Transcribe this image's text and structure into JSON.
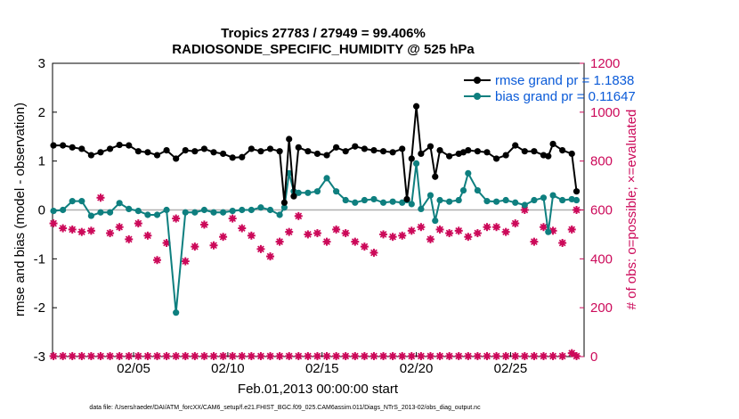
{
  "chart_data": {
    "type": "line",
    "title": "Tropics 27783 / 27949 = 99.406%",
    "subtitle": "RADIOSONDE_SPECIFIC_HUMIDITY @ 525 hPa",
    "xlabel": "Feb.01,2013 00:00:00 start",
    "ylabel": "rmse and bias (model - observation)",
    "y2label": "# of obs: o=possible; ×=evaluated",
    "footnote": "data file: /Users/raeder/DAI/ATM_forcXX/CAM6_setup/f.e21.FHIST_BGC.f09_025.CAM6assim.011/Diags_NTrS_2013-02/obs_diag_output.nc",
    "xlim": [
      0.7,
      28.9
    ],
    "ylim": [
      -3,
      3
    ],
    "y2lim": [
      0,
      1200
    ],
    "xticks": [
      5,
      10,
      15,
      20,
      25
    ],
    "xtick_labels": [
      "02/05",
      "02/10",
      "02/15",
      "02/20",
      "02/25"
    ],
    "yticks": [
      -3,
      -2,
      -1,
      0,
      1,
      2,
      3
    ],
    "ytick_labels": [
      "-3",
      "-2",
      "-1",
      "0",
      "1",
      "2",
      "3"
    ],
    "y2ticks": [
      0,
      200,
      400,
      600,
      800,
      1000,
      1200
    ],
    "y2tick_labels": [
      "0",
      "200",
      "400",
      "600",
      "800",
      "1000",
      "1200"
    ],
    "legend": [
      "rmse grand pr = 1.1838",
      "bias grand pr = 0.11647"
    ],
    "colors": {
      "rmse": "#000000",
      "bias": "#0e7f7f",
      "obs": "#cc0a5a",
      "zero": "#b0b0b0",
      "legend_text": "#0b5bd8"
    },
    "series": [
      {
        "name": "rmse",
        "x": [
          0.75,
          1.25,
          1.75,
          2.25,
          2.75,
          3.25,
          3.75,
          4.25,
          4.75,
          5.25,
          5.75,
          6.25,
          6.75,
          7.25,
          7.75,
          8.25,
          8.75,
          9.25,
          9.75,
          10.25,
          10.75,
          11.25,
          11.75,
          12.25,
          12.75,
          13.0,
          13.25,
          13.5,
          13.75,
          14.25,
          14.75,
          15.25,
          15.75,
          16.25,
          16.75,
          17.25,
          17.75,
          18.25,
          18.75,
          19.25,
          19.5,
          19.75,
          20.0,
          20.25,
          20.75,
          21.0,
          21.25,
          21.75,
          22.25,
          22.5,
          22.75,
          23.25,
          23.75,
          24.25,
          24.75,
          25.25,
          25.75,
          26.25,
          26.75,
          27.0,
          27.25,
          27.75,
          28.25,
          28.5
        ],
        "y": [
          1.32,
          1.32,
          1.28,
          1.25,
          1.12,
          1.18,
          1.25,
          1.33,
          1.32,
          1.2,
          1.18,
          1.12,
          1.22,
          1.05,
          1.22,
          1.2,
          1.25,
          1.18,
          1.15,
          1.07,
          1.08,
          1.25,
          1.2,
          1.25,
          1.2,
          0.15,
          1.45,
          0.28,
          1.28,
          1.2,
          1.15,
          1.12,
          1.28,
          1.2,
          1.3,
          1.25,
          1.22,
          1.2,
          1.18,
          1.25,
          0.22,
          1.05,
          2.12,
          1.15,
          1.3,
          0.68,
          1.22,
          1.1,
          1.15,
          1.18,
          1.22,
          1.2,
          1.18,
          1.05,
          1.12,
          1.32,
          1.2,
          1.2,
          1.12,
          1.1,
          1.35,
          1.22,
          1.15,
          0.38
        ]
      },
      {
        "name": "bias",
        "x": [
          0.75,
          1.25,
          1.75,
          2.25,
          2.75,
          3.25,
          3.75,
          4.25,
          4.75,
          5.25,
          5.75,
          6.25,
          6.75,
          7.25,
          7.75,
          8.25,
          8.75,
          9.25,
          9.75,
          10.25,
          10.75,
          11.25,
          11.75,
          12.25,
          12.75,
          13.0,
          13.25,
          13.5,
          13.75,
          14.25,
          14.75,
          15.25,
          15.75,
          16.25,
          16.75,
          17.25,
          17.75,
          18.25,
          18.75,
          19.25,
          19.5,
          19.75,
          20.0,
          20.25,
          20.75,
          21.0,
          21.25,
          21.75,
          22.25,
          22.5,
          22.75,
          23.25,
          23.75,
          24.25,
          24.75,
          25.25,
          25.75,
          26.25,
          26.75,
          27.0,
          27.25,
          27.75,
          28.25,
          28.5
        ],
        "y": [
          -0.02,
          0.0,
          0.18,
          0.18,
          -0.12,
          -0.05,
          -0.05,
          0.14,
          0.02,
          -0.02,
          -0.1,
          -0.1,
          0.0,
          -2.1,
          -0.05,
          -0.05,
          0.0,
          -0.05,
          -0.05,
          -0.02,
          0.0,
          0.0,
          0.05,
          0.0,
          -0.1,
          0.05,
          0.75,
          0.38,
          0.35,
          0.35,
          0.38,
          0.65,
          0.38,
          0.2,
          0.15,
          0.2,
          0.22,
          0.15,
          0.17,
          0.15,
          0.2,
          0.12,
          0.95,
          0.02,
          0.3,
          -0.22,
          0.2,
          0.17,
          0.2,
          0.4,
          0.75,
          0.4,
          0.18,
          0.17,
          0.2,
          0.15,
          0.1,
          0.2,
          0.25,
          -0.45,
          0.3,
          0.2,
          0.22,
          0.2
        ]
      },
      {
        "name": "obs_possible",
        "x": [
          0.75,
          1.25,
          1.75,
          2.25,
          2.75,
          3.25,
          3.75,
          4.25,
          4.75,
          5.25,
          5.75,
          6.25,
          6.75,
          7.25,
          7.75,
          8.25,
          8.75,
          9.25,
          9.75,
          10.25,
          10.75,
          11.25,
          11.75,
          12.25,
          12.75,
          13.25,
          13.75,
          14.25,
          14.75,
          15.25,
          15.75,
          16.25,
          16.75,
          17.25,
          17.75,
          18.25,
          18.75,
          19.25,
          19.75,
          20.25,
          20.75,
          21.25,
          21.75,
          22.25,
          22.75,
          23.25,
          23.75,
          24.25,
          24.75,
          25.25,
          25.75,
          26.25,
          26.75,
          27.25,
          27.75,
          28.25,
          28.5
        ],
        "y": [
          545,
          525,
          520,
          510,
          515,
          650,
          505,
          530,
          480,
          545,
          495,
          395,
          465,
          565,
          390,
          450,
          540,
          455,
          490,
          565,
          525,
          495,
          440,
          410,
          470,
          510,
          575,
          500,
          505,
          470,
          520,
          505,
          470,
          450,
          425,
          500,
          490,
          495,
          515,
          530,
          480,
          520,
          505,
          515,
          490,
          505,
          530,
          530,
          510,
          545,
          600,
          470,
          530,
          515,
          465,
          520,
          600
        ]
      },
      {
        "name": "obs_evaluated",
        "x": [
          0.75,
          1.25,
          1.75,
          2.25,
          2.75,
          3.25,
          3.75,
          4.25,
          4.75,
          5.25,
          5.75,
          6.25,
          6.75,
          7.25,
          7.75,
          8.25,
          8.75,
          9.25,
          9.75,
          10.25,
          10.75,
          11.25,
          11.75,
          12.25,
          12.75,
          13.25,
          13.75,
          14.25,
          14.75,
          15.25,
          15.75,
          16.25,
          16.75,
          17.25,
          17.75,
          18.25,
          18.75,
          19.25,
          19.75,
          20.25,
          20.75,
          21.25,
          21.75,
          22.25,
          22.75,
          23.25,
          23.75,
          24.25,
          24.75,
          25.25,
          25.75,
          26.25,
          26.75,
          27.25,
          27.75,
          28.25,
          28.5
        ],
        "y": [
          2,
          2,
          2,
          2,
          2,
          2,
          2,
          2,
          2,
          2,
          2,
          2,
          2,
          2,
          2,
          2,
          2,
          2,
          2,
          2,
          2,
          2,
          2,
          2,
          2,
          2,
          2,
          2,
          2,
          2,
          2,
          2,
          2,
          2,
          2,
          2,
          2,
          2,
          2,
          2,
          2,
          2,
          2,
          2,
          2,
          2,
          2,
          2,
          2,
          2,
          2,
          2,
          2,
          2,
          2,
          14,
          2
        ]
      }
    ]
  }
}
